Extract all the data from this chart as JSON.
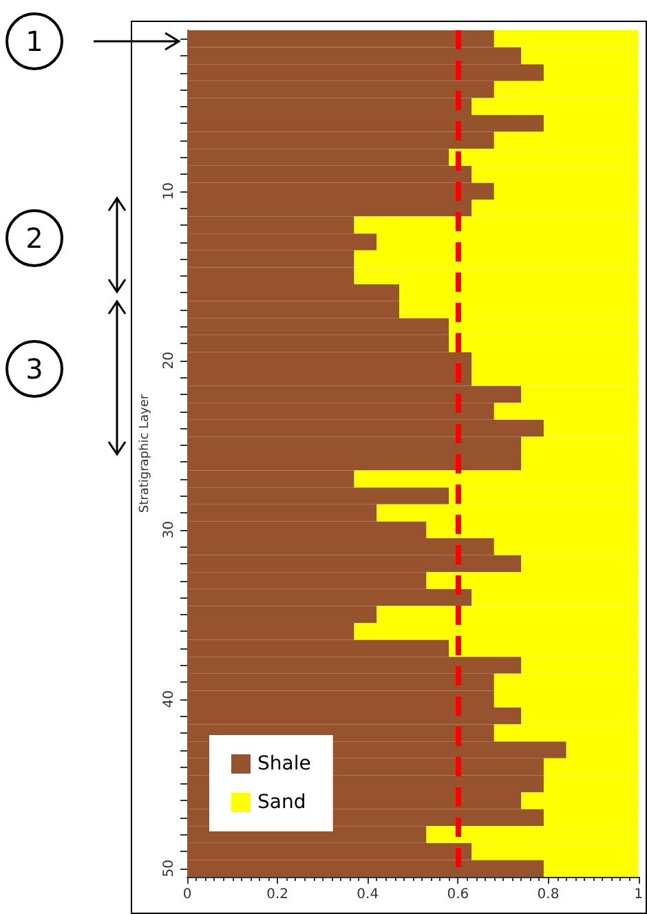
{
  "chart_data": {
    "type": "bar",
    "orientation": "horizontal",
    "stacked": true,
    "ylabel": "Stratigraphic Layer",
    "categories": [
      null,
      null,
      null,
      null,
      null,
      null,
      null,
      null,
      null,
      "10",
      null,
      null,
      null,
      null,
      null,
      null,
      null,
      null,
      null,
      "20",
      null,
      null,
      null,
      null,
      null,
      null,
      null,
      null,
      null,
      "30",
      null,
      null,
      null,
      null,
      null,
      null,
      null,
      null,
      null,
      "40",
      null,
      null,
      null,
      null,
      null,
      null,
      null,
      null,
      null,
      "50"
    ],
    "series": [
      {
        "name": "Shale",
        "color": "#96532d",
        "values": [
          0.68,
          0.74,
          0.79,
          0.68,
          0.63,
          0.79,
          0.68,
          0.58,
          0.63,
          0.68,
          0.63,
          0.37,
          0.42,
          0.37,
          0.37,
          0.47,
          0.47,
          0.58,
          0.58,
          0.63,
          0.63,
          0.74,
          0.68,
          0.79,
          0.74,
          0.74,
          0.37,
          0.58,
          0.42,
          0.53,
          0.68,
          0.74,
          0.53,
          0.63,
          0.42,
          0.37,
          0.58,
          0.74,
          0.68,
          0.68,
          0.74,
          0.68,
          0.84,
          0.79,
          0.79,
          0.74,
          0.79,
          0.53,
          0.63,
          0.79
        ]
      },
      {
        "name": "Sand",
        "color": "#ffff00",
        "values": [
          0.32,
          0.26,
          0.21,
          0.32,
          0.37,
          0.21,
          0.32,
          0.42,
          0.37,
          0.32,
          0.37,
          0.63,
          0.58,
          0.63,
          0.63,
          0.53,
          0.53,
          0.42,
          0.42,
          0.37,
          0.37,
          0.26,
          0.32,
          0.21,
          0.26,
          0.26,
          0.63,
          0.42,
          0.58,
          0.47,
          0.32,
          0.26,
          0.47,
          0.37,
          0.58,
          0.63,
          0.42,
          0.26,
          0.32,
          0.32,
          0.26,
          0.32,
          0.16,
          0.21,
          0.21,
          0.26,
          0.21,
          0.47,
          0.37,
          0.21
        ]
      }
    ],
    "xlim": [
      0,
      1
    ],
    "xticks": [
      0,
      0.2,
      0.4,
      0.6,
      0.8,
      1
    ],
    "ref_lines": [
      {
        "axis": "x",
        "value": 0.6,
        "color": "#ff0000",
        "line_style": "dashed"
      }
    ],
    "legend": "bottom left",
    "grid": false,
    "annotations": [
      "1",
      "2",
      "3"
    ]
  }
}
